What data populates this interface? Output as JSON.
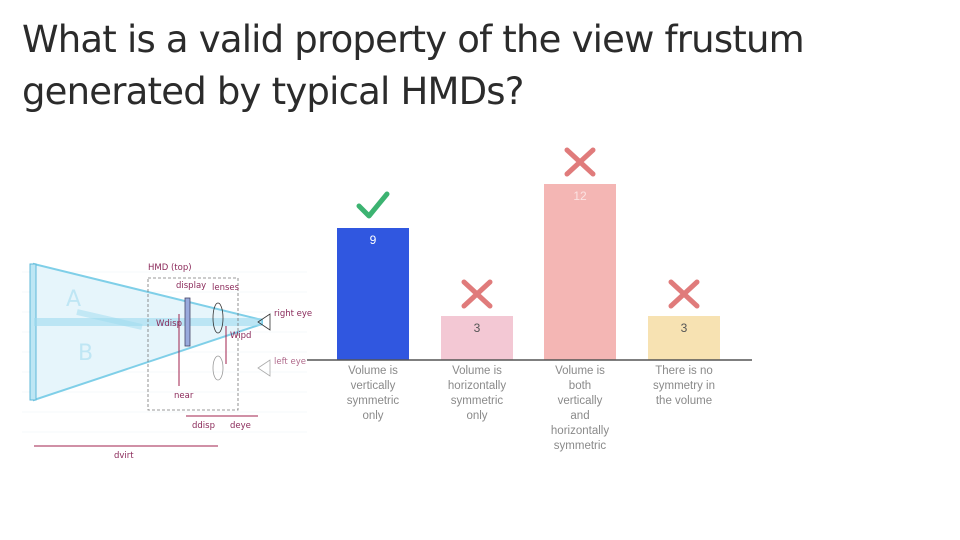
{
  "question": {
    "title": "What is a valid property of the view frustum generated by typical HMDs?"
  },
  "diagram": {
    "labels": {
      "hmd": "HMD (top)",
      "display": "display",
      "lenses": "lenses",
      "w_disp": "Wdisp",
      "w_ipd": "Wipd",
      "right_eye": "right eye",
      "left_eye": "left eye",
      "near": "near",
      "d_disp": "ddisp",
      "d_eye": "deye",
      "d_virt": "dvirt",
      "a": "A",
      "b": "B"
    }
  },
  "chart_data": {
    "type": "bar",
    "title": "",
    "xlabel": "",
    "ylabel": "",
    "categories": [
      "Volume is vertically symmetric only",
      "Volume is horizontally symmetric only",
      "Volume is both vertically and horizontally symmetric",
      "There is no symmetry in the volume"
    ],
    "values": [
      9,
      3,
      12,
      3
    ],
    "ylim": [
      0,
      12
    ],
    "grid": false,
    "colors": [
      "#3057e0",
      "#f3c8d4",
      "#f4b6b4",
      "#f7e2b2"
    ],
    "marks": [
      "check",
      "cross",
      "cross",
      "cross"
    ],
    "mark_colors": {
      "check": "#3cb371",
      "cross": "#e07b7b"
    },
    "category_lines": [
      [
        "Volume is",
        "vertically",
        "symmetric",
        "only"
      ],
      [
        "Volume is",
        "horizontally",
        "symmetric",
        "only"
      ],
      [
        "Volume is",
        "both",
        "vertically",
        "and",
        "horizontally",
        "symmetric"
      ],
      [
        "There is no",
        "symmetry in",
        "the volume"
      ]
    ]
  }
}
